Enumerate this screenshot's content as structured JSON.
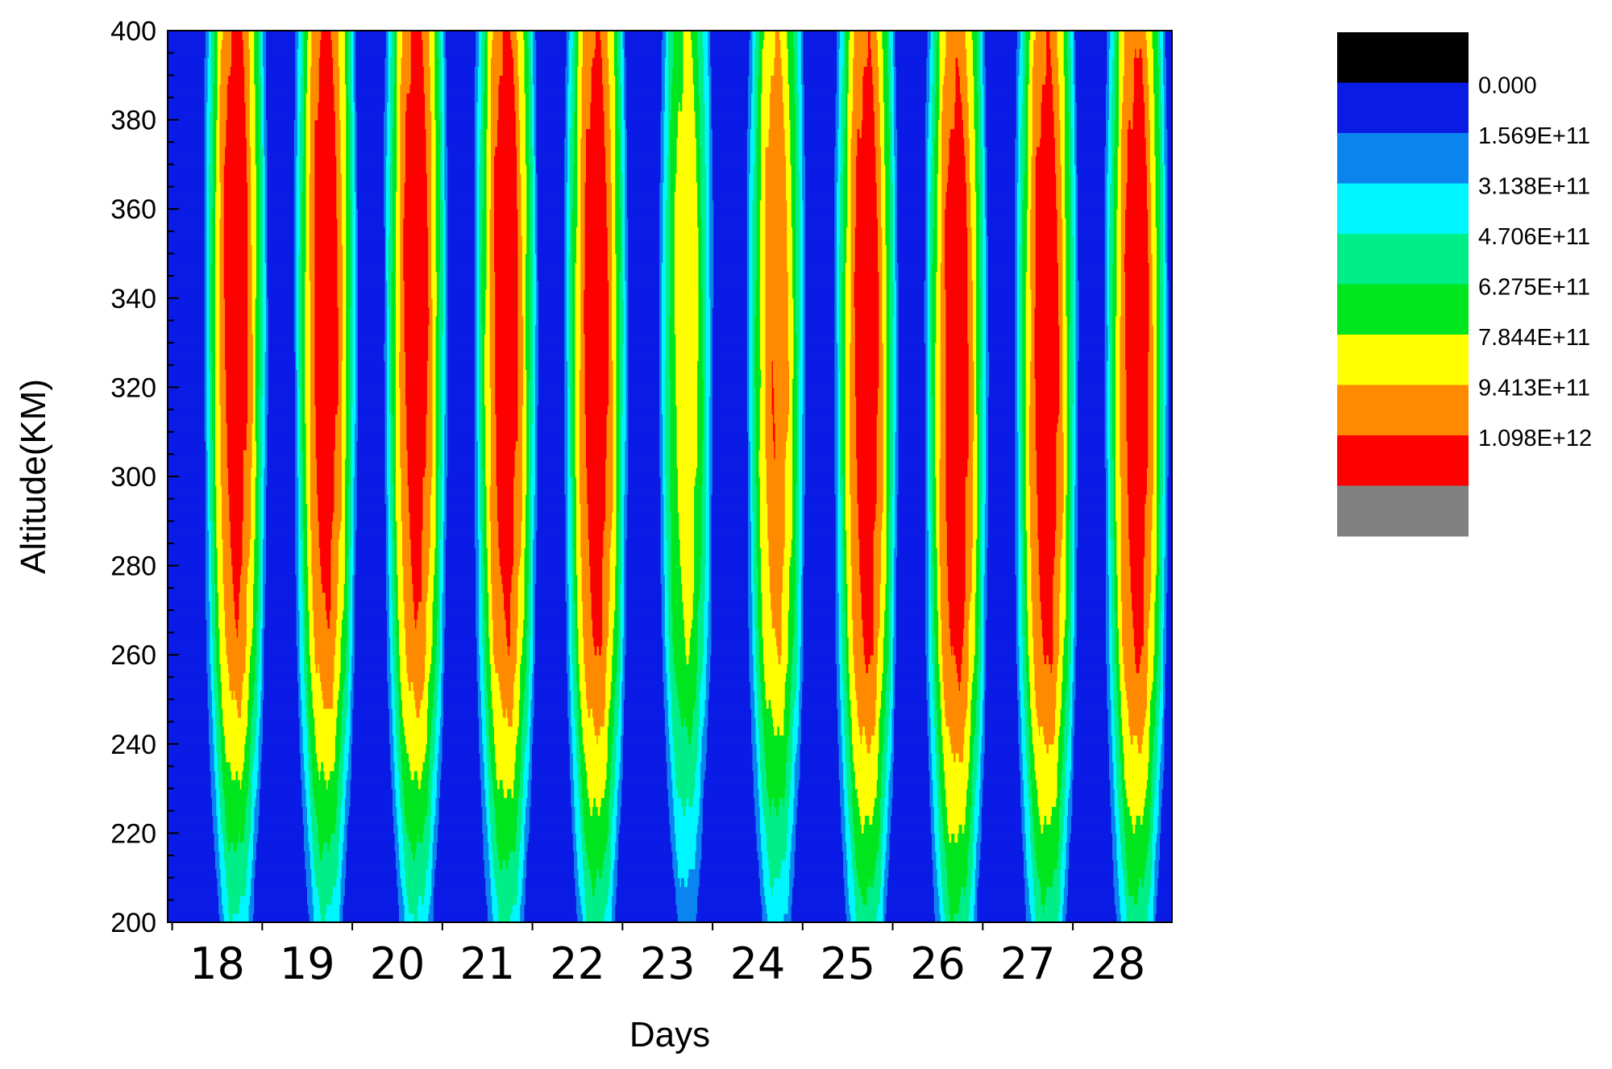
{
  "chart_data": {
    "type": "heatmap",
    "subtype": "filled-contour",
    "title": "",
    "xlabel": "Days",
    "ylabel": "Altitude(KM)",
    "xlim": [
      17.45,
      28.6
    ],
    "ylim": [
      200,
      400
    ],
    "xticks": [
      "18",
      "19",
      "20",
      "21",
      "22",
      "23",
      "24",
      "25",
      "26",
      "27",
      "28"
    ],
    "yticks": [
      "200",
      "220",
      "240",
      "260",
      "280",
      "300",
      "320",
      "340",
      "360",
      "380",
      "400"
    ],
    "grid": false,
    "legend_position": "right",
    "color_levels": [
      {
        "label": "",
        "color": "#000000"
      },
      {
        "label": "0.000",
        "color": "#0a1be6"
      },
      {
        "label": "1.569E+11",
        "color": "#0a84ee"
      },
      {
        "label": "3.138E+11",
        "color": "#00f6ff"
      },
      {
        "label": "4.706E+11",
        "color": "#00ee88"
      },
      {
        "label": "6.275E+11",
        "color": "#00e61e"
      },
      {
        "label": "7.844E+11",
        "color": "#ffff00"
      },
      {
        "label": "9.413E+11",
        "color": "#ff8a00"
      },
      {
        "label": "1.098E+12",
        "color": "#ff0000"
      },
      {
        "label": "",
        "color": "#808080"
      }
    ],
    "daily_peaks": [
      {
        "day": 18.2,
        "peak_level": 7,
        "peak_alt": 340
      },
      {
        "day": 19.2,
        "peak_level": 7,
        "peak_alt": 340
      },
      {
        "day": 20.2,
        "peak_level": 7,
        "peak_alt": 340
      },
      {
        "day": 21.2,
        "peak_level": 7,
        "peak_alt": 335
      },
      {
        "day": 22.2,
        "peak_level": 7,
        "peak_alt": 330
      },
      {
        "day": 23.2,
        "peak_level": 5,
        "peak_alt": 330
      },
      {
        "day": 24.2,
        "peak_level": 6,
        "peak_alt": 330
      },
      {
        "day": 25.2,
        "peak_level": 7,
        "peak_alt": 325
      },
      {
        "day": 26.2,
        "peak_level": 7,
        "peak_alt": 320
      },
      {
        "day": 27.2,
        "peak_level": 7,
        "peak_alt": 325
      },
      {
        "day": 28.2,
        "peak_level": 7,
        "peak_alt": 325
      }
    ]
  }
}
